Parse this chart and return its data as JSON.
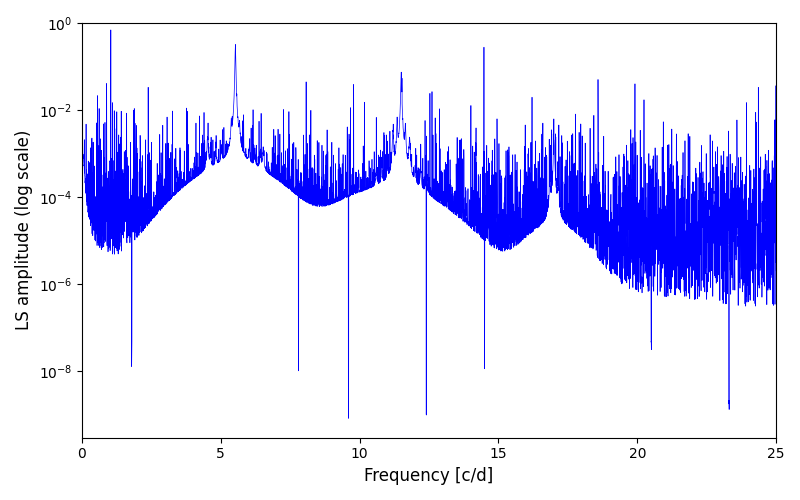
{
  "xlabel": "Frequency [c/d]",
  "ylabel": "LS amplitude (log scale)",
  "line_color": "#0000ff",
  "xlim": [
    0,
    25
  ],
  "ylim": [
    3e-10,
    1.0
  ],
  "xticks": [
    0,
    5,
    10,
    15,
    20,
    25
  ],
  "background_color": "#ffffff",
  "figsize": [
    8.0,
    5.0
  ],
  "dpi": 100,
  "seed": 42,
  "line_width": 0.5
}
